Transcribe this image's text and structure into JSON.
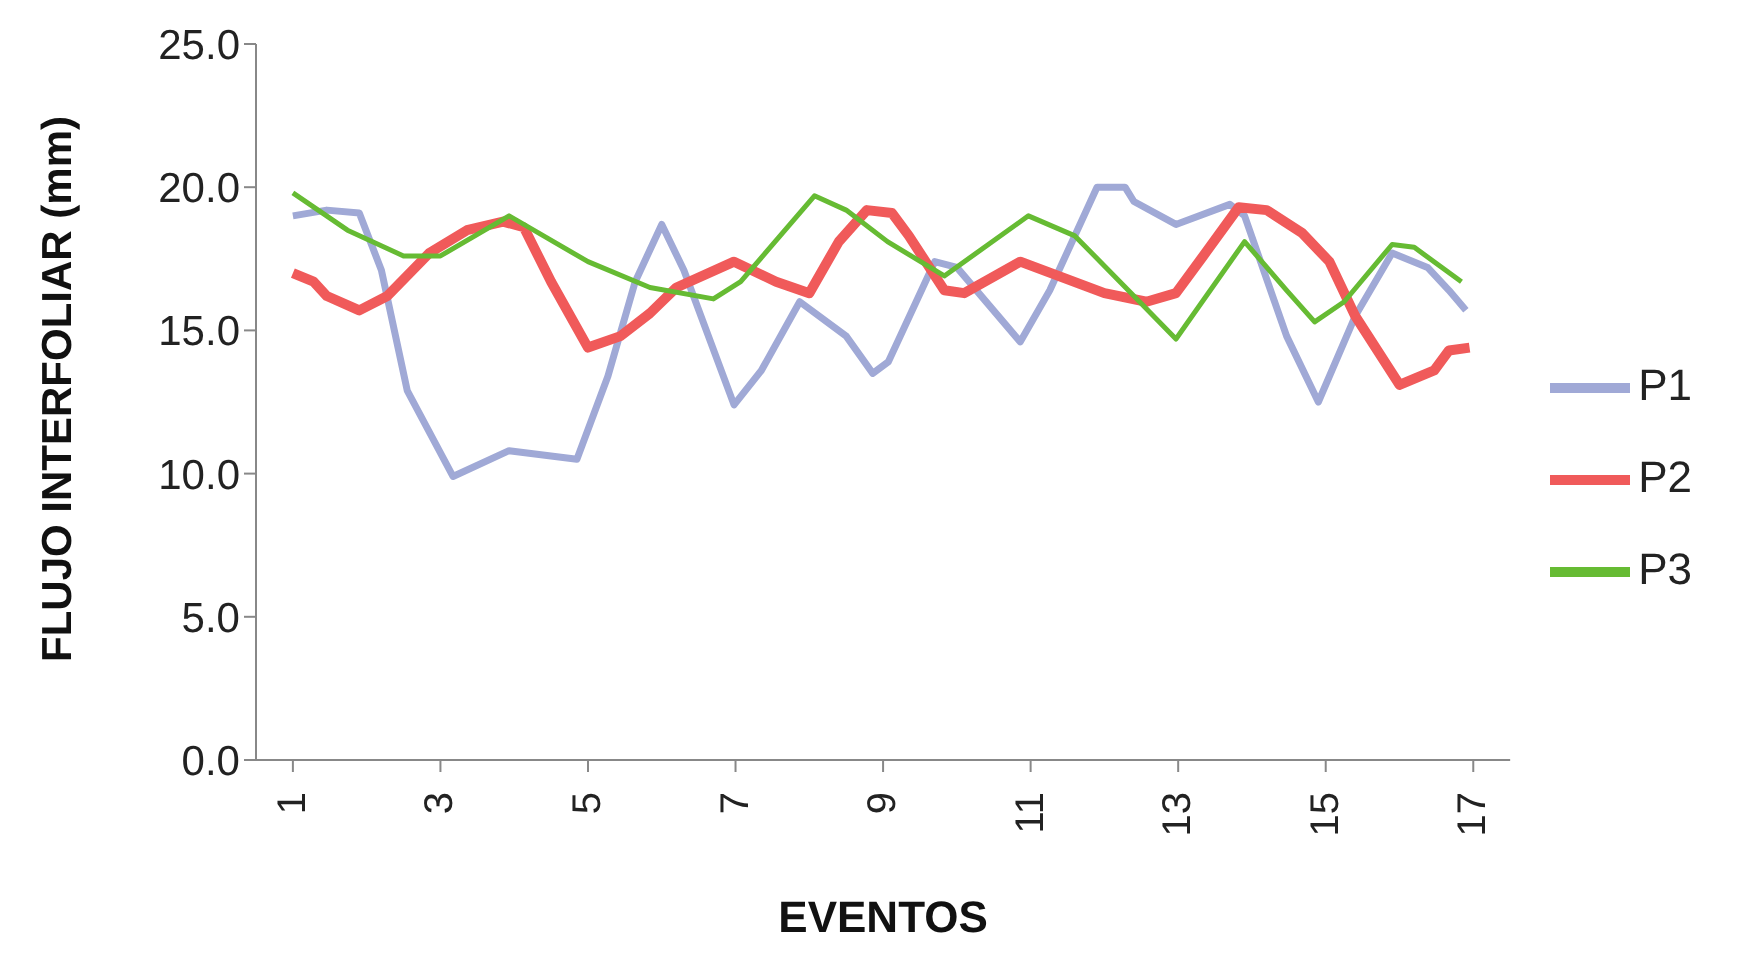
{
  "chart_data": {
    "type": "line",
    "xlabel": "EVENTOS",
    "ylabel": "FLUJO INTERFOLIAR (mm)",
    "xlim": [
      0.5,
      17.5
    ],
    "xticks": [
      1,
      3,
      5,
      7,
      9,
      11,
      13,
      15,
      17
    ],
    "ylim": [
      0,
      25
    ],
    "yticks": [
      {
        "value": 0,
        "label": "0.0"
      },
      {
        "value": 5,
        "label": "5.0"
      },
      {
        "value": 10,
        "label": "10.0"
      },
      {
        "value": 15,
        "label": "15.0"
      },
      {
        "value": 20,
        "label": "20.0"
      },
      {
        "value": 25,
        "label": "25.0"
      }
    ],
    "grid": false,
    "legend": "right",
    "marker": "none",
    "line_style": "solid",
    "series": [
      {
        "name": "P1",
        "color": "#a0a9d6",
        "x": [
          1,
          1.46,
          1.9,
          2.2,
          2.55,
          3.17,
          3.93,
          4.85,
          5.27,
          5.64,
          6.0,
          6.3,
          6.98,
          7.35,
          7.87,
          8.5,
          8.86,
          9.07,
          9.7,
          10.0,
          10.86,
          11.26,
          11.9,
          12.28,
          12.4,
          12.97,
          13.7,
          13.9,
          14.47,
          14.9,
          15.4,
          15.9,
          16.38,
          16.67,
          16.9
        ],
        "values": [
          19.0,
          19.2,
          19.1,
          17.1,
          12.9,
          9.9,
          10.8,
          10.5,
          13.4,
          16.7,
          18.7,
          17.1,
          12.4,
          13.6,
          16.0,
          14.8,
          13.5,
          13.9,
          17.4,
          17.2,
          14.6,
          16.4,
          20.0,
          20.0,
          19.5,
          18.7,
          19.4,
          19.0,
          14.8,
          12.5,
          15.5,
          17.7,
          17.2,
          16.4,
          15.7
        ]
      },
      {
        "name": "P2",
        "color": "#f05a5a",
        "x": [
          1,
          1.28,
          1.46,
          1.9,
          2.28,
          2.85,
          3.36,
          3.85,
          4.13,
          4.5,
          5.0,
          5.44,
          5.84,
          6.2,
          6.98,
          7.55,
          8.0,
          8.4,
          8.78,
          9.12,
          9.35,
          9.83,
          10.1,
          10.86,
          12.0,
          12.57,
          12.97,
          13.34,
          13.82,
          14.2,
          14.68,
          15.05,
          15.4,
          16.0,
          16.47,
          16.67,
          16.95
        ],
        "values": [
          17.0,
          16.7,
          16.2,
          15.7,
          16.2,
          17.7,
          18.5,
          18.8,
          18.6,
          16.7,
          14.4,
          14.8,
          15.6,
          16.5,
          17.4,
          16.7,
          16.3,
          18.1,
          19.2,
          19.1,
          18.3,
          16.4,
          16.3,
          17.4,
          16.3,
          16.0,
          16.3,
          17.6,
          19.3,
          19.2,
          18.4,
          17.4,
          15.5,
          13.1,
          13.6,
          14.3,
          14.4
        ]
      },
      {
        "name": "P3",
        "color": "#66bb33",
        "x": [
          1,
          1.74,
          2.5,
          3.0,
          3.93,
          5.0,
          5.84,
          6.7,
          7.07,
          8.07,
          8.5,
          9.06,
          9.83,
          10.97,
          11.6,
          12.4,
          12.97,
          13.9,
          14.47,
          14.85,
          15.25,
          15.9,
          16.2,
          16.84
        ],
        "values": [
          19.8,
          18.5,
          17.6,
          17.6,
          19.0,
          17.4,
          16.5,
          16.1,
          16.7,
          19.7,
          19.2,
          18.1,
          16.9,
          19.0,
          18.3,
          16.2,
          14.7,
          18.1,
          16.4,
          15.3,
          16.0,
          18.0,
          17.9,
          16.7
        ]
      }
    ]
  }
}
